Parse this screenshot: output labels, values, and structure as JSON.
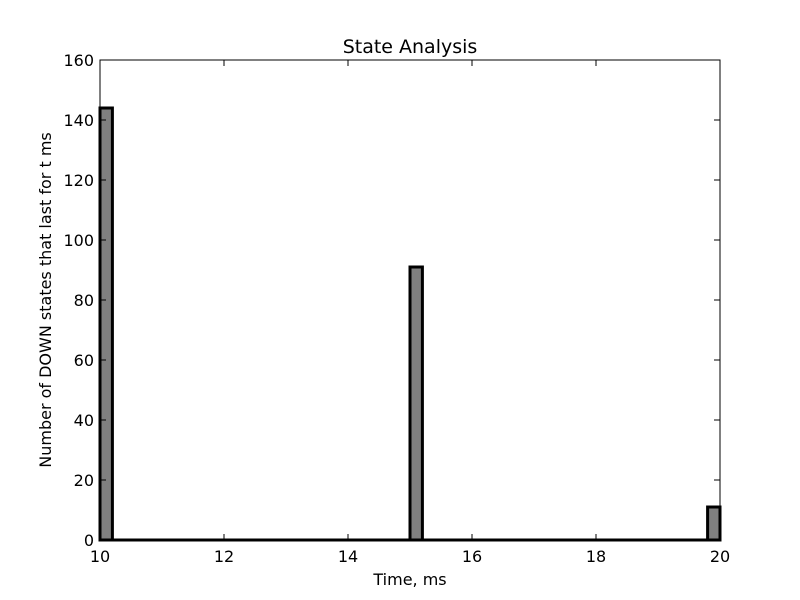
{
  "chart_data": {
    "type": "bar",
    "title": "State Analysis",
    "xlabel": "Time, ms",
    "ylabel": "Number of DOWN states that last for t ms",
    "xlim": [
      10,
      20
    ],
    "ylim": [
      0,
      160
    ],
    "xticks": [
      "10",
      "12",
      "14",
      "16",
      "18",
      "20"
    ],
    "yticks": [
      "0",
      "20",
      "40",
      "60",
      "80",
      "100",
      "120",
      "140",
      "160"
    ],
    "bin_width": 0.2,
    "bars": [
      {
        "x": 10.0,
        "value": 144
      },
      {
        "x": 15.0,
        "value": 91
      },
      {
        "x": 19.8,
        "value": 11
      }
    ],
    "bar_fill": "#808080",
    "bar_edge": "#000000",
    "grid": false,
    "legend": "none"
  }
}
